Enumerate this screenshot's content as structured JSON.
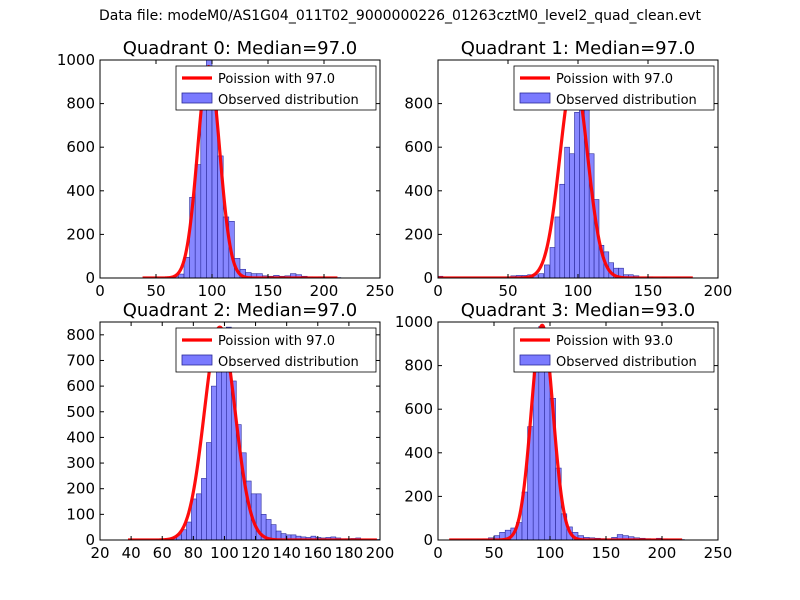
{
  "figure_title": "Data file: modeM0/AS1G04_011T02_9000000226_01263cztM0_level2_quad_clean.evt",
  "colors": {
    "bars": "#7a7aff",
    "bar_edge": "#2a2a9a",
    "fit": "#ff0000",
    "axis": "#000000"
  },
  "chart_data": [
    {
      "type": "bar",
      "title": "Quadrant 0: Median=97.0",
      "xlim": [
        0,
        250
      ],
      "ylim": [
        0,
        1000
      ],
      "xticks": [
        0,
        50,
        100,
        150,
        200,
        250
      ],
      "yticks": [
        0,
        200,
        400,
        600,
        800,
        1000
      ],
      "legend_position": "top-right",
      "legend": [
        "Poission with 97.0",
        "Observed distribution"
      ],
      "bin_width": 5,
      "bins": [
        [
          40,
          1
        ],
        [
          45,
          1
        ],
        [
          50,
          1
        ],
        [
          55,
          2
        ],
        [
          60,
          3
        ],
        [
          65,
          6
        ],
        [
          70,
          18
        ],
        [
          75,
          95
        ],
        [
          80,
          370
        ],
        [
          85,
          520
        ],
        [
          90,
          780
        ],
        [
          95,
          1000
        ],
        [
          100,
          840
        ],
        [
          105,
          560
        ],
        [
          110,
          280
        ],
        [
          115,
          260
        ],
        [
          120,
          90
        ],
        [
          125,
          40
        ],
        [
          130,
          25
        ],
        [
          135,
          20
        ],
        [
          140,
          20
        ],
        [
          145,
          10
        ],
        [
          150,
          8
        ],
        [
          155,
          12
        ],
        [
          160,
          8
        ],
        [
          165,
          10
        ],
        [
          170,
          20
        ],
        [
          175,
          15
        ],
        [
          180,
          8
        ],
        [
          185,
          5
        ],
        [
          190,
          3
        ],
        [
          195,
          5
        ],
        [
          200,
          3
        ],
        [
          205,
          2
        ],
        [
          210,
          2
        ]
      ],
      "fit_mean": 97.0,
      "fit_peak": 970,
      "fit_range": [
        38,
        212
      ]
    },
    {
      "type": "bar",
      "title": "Quadrant 1: Median=97.0",
      "xlim": [
        0,
        200
      ],
      "ylim": [
        0,
        1000
      ],
      "xticks": [
        0,
        50,
        100,
        150,
        200
      ],
      "yticks": [
        0,
        200,
        400,
        600,
        800
      ],
      "legend_position": "top-right",
      "legend": [
        "Poission with 97.0",
        "Observed distribution"
      ],
      "bin_width": 3.5,
      "bins": [
        [
          0,
          8
        ],
        [
          52,
          10
        ],
        [
          56,
          12
        ],
        [
          60,
          12
        ],
        [
          64,
          15
        ],
        [
          68,
          15
        ],
        [
          72,
          20
        ],
        [
          76,
          60
        ],
        [
          80,
          140
        ],
        [
          83.5,
          280
        ],
        [
          87,
          430
        ],
        [
          90.5,
          600
        ],
        [
          94,
          570
        ],
        [
          97.5,
          760
        ],
        [
          101,
          920
        ],
        [
          104.5,
          880
        ],
        [
          108,
          570
        ],
        [
          111.5,
          360
        ],
        [
          115,
          150
        ],
        [
          118.5,
          120
        ],
        [
          122,
          70
        ],
        [
          125.5,
          45
        ],
        [
          129,
          45
        ],
        [
          132.5,
          15
        ],
        [
          136,
          15
        ],
        [
          140,
          10
        ],
        [
          150,
          5
        ],
        [
          160,
          3
        ],
        [
          170,
          2
        ]
      ],
      "fit_mean": 97.0,
      "fit_peak": 930,
      "fit_range": [
        0,
        182
      ]
    },
    {
      "type": "bar",
      "title": "Quadrant 2: Median=97.0",
      "xlim": [
        20,
        200
      ],
      "ylim": [
        0,
        850
      ],
      "xticks": [
        20,
        40,
        60,
        80,
        100,
        120,
        140,
        160,
        180,
        200
      ],
      "yticks": [
        0,
        100,
        200,
        300,
        400,
        500,
        600,
        700,
        800
      ],
      "legend_position": "top-right",
      "legend": [
        "Poission with 97.0",
        "Observed distribution"
      ],
      "bin_width": 3.2,
      "bins": [
        [
          38,
          1
        ],
        [
          44,
          1
        ],
        [
          50,
          1
        ],
        [
          56,
          2
        ],
        [
          62,
          5
        ],
        [
          66,
          10
        ],
        [
          69.2,
          20
        ],
        [
          72.4,
          40
        ],
        [
          75.6,
          70
        ],
        [
          78.8,
          160
        ],
        [
          82,
          180
        ],
        [
          85.2,
          240
        ],
        [
          88.4,
          380
        ],
        [
          91.6,
          600
        ],
        [
          94.8,
          740
        ],
        [
          98,
          760
        ],
        [
          101.2,
          830
        ],
        [
          104.4,
          620
        ],
        [
          107.6,
          450
        ],
        [
          110.8,
          340
        ],
        [
          114,
          230
        ],
        [
          117.2,
          180
        ],
        [
          120.4,
          180
        ],
        [
          123.6,
          100
        ],
        [
          126.8,
          80
        ],
        [
          130,
          60
        ],
        [
          133.2,
          35
        ],
        [
          136.4,
          25
        ],
        [
          139.6,
          20
        ],
        [
          142.8,
          20
        ],
        [
          146,
          15
        ],
        [
          149.2,
          12
        ],
        [
          152.4,
          10
        ],
        [
          155.6,
          15
        ],
        [
          158.8,
          10
        ],
        [
          162,
          8
        ],
        [
          165.2,
          10
        ],
        [
          168.4,
          12
        ],
        [
          171.6,
          8
        ],
        [
          174.8,
          5
        ],
        [
          178,
          5
        ],
        [
          181.2,
          6
        ],
        [
          184.4,
          8
        ],
        [
          187.6,
          3
        ],
        [
          190.8,
          3
        ],
        [
          194,
          2
        ],
        [
          197.2,
          2
        ]
      ],
      "fit_mean": 97.0,
      "fit_peak": 830,
      "fit_range": [
        38,
        198
      ]
    },
    {
      "type": "bar",
      "title": "Quadrant 3: Median=93.0",
      "xlim": [
        0,
        250
      ],
      "ylim": [
        0,
        1000
      ],
      "xticks": [
        0,
        50,
        100,
        150,
        200,
        250
      ],
      "yticks": [
        0,
        200,
        400,
        600,
        800,
        1000
      ],
      "legend_position": "top-right",
      "legend": [
        "Poission with 93.0",
        "Observed distribution"
      ],
      "bin_width": 5,
      "bins": [
        [
          20,
          1
        ],
        [
          25,
          2
        ],
        [
          30,
          2
        ],
        [
          35,
          3
        ],
        [
          40,
          5
        ],
        [
          45,
          10
        ],
        [
          50,
          20
        ],
        [
          55,
          35
        ],
        [
          60,
          45
        ],
        [
          65,
          55
        ],
        [
          70,
          80
        ],
        [
          75,
          220
        ],
        [
          80,
          520
        ],
        [
          85,
          820
        ],
        [
          90,
          980
        ],
        [
          95,
          880
        ],
        [
          100,
          650
        ],
        [
          105,
          330
        ],
        [
          110,
          120
        ],
        [
          115,
          60
        ],
        [
          120,
          35
        ],
        [
          125,
          20
        ],
        [
          130,
          12
        ],
        [
          135,
          10
        ],
        [
          140,
          8
        ],
        [
          145,
          6
        ],
        [
          150,
          5
        ],
        [
          155,
          12
        ],
        [
          160,
          25
        ],
        [
          165,
          20
        ],
        [
          170,
          15
        ],
        [
          175,
          10
        ],
        [
          180,
          8
        ],
        [
          185,
          6
        ],
        [
          190,
          5
        ],
        [
          195,
          8
        ],
        [
          200,
          5
        ],
        [
          205,
          3
        ],
        [
          210,
          3
        ],
        [
          215,
          2
        ]
      ],
      "fit_mean": 93.0,
      "fit_peak": 985,
      "fit_range": [
        10,
        218
      ]
    }
  ]
}
